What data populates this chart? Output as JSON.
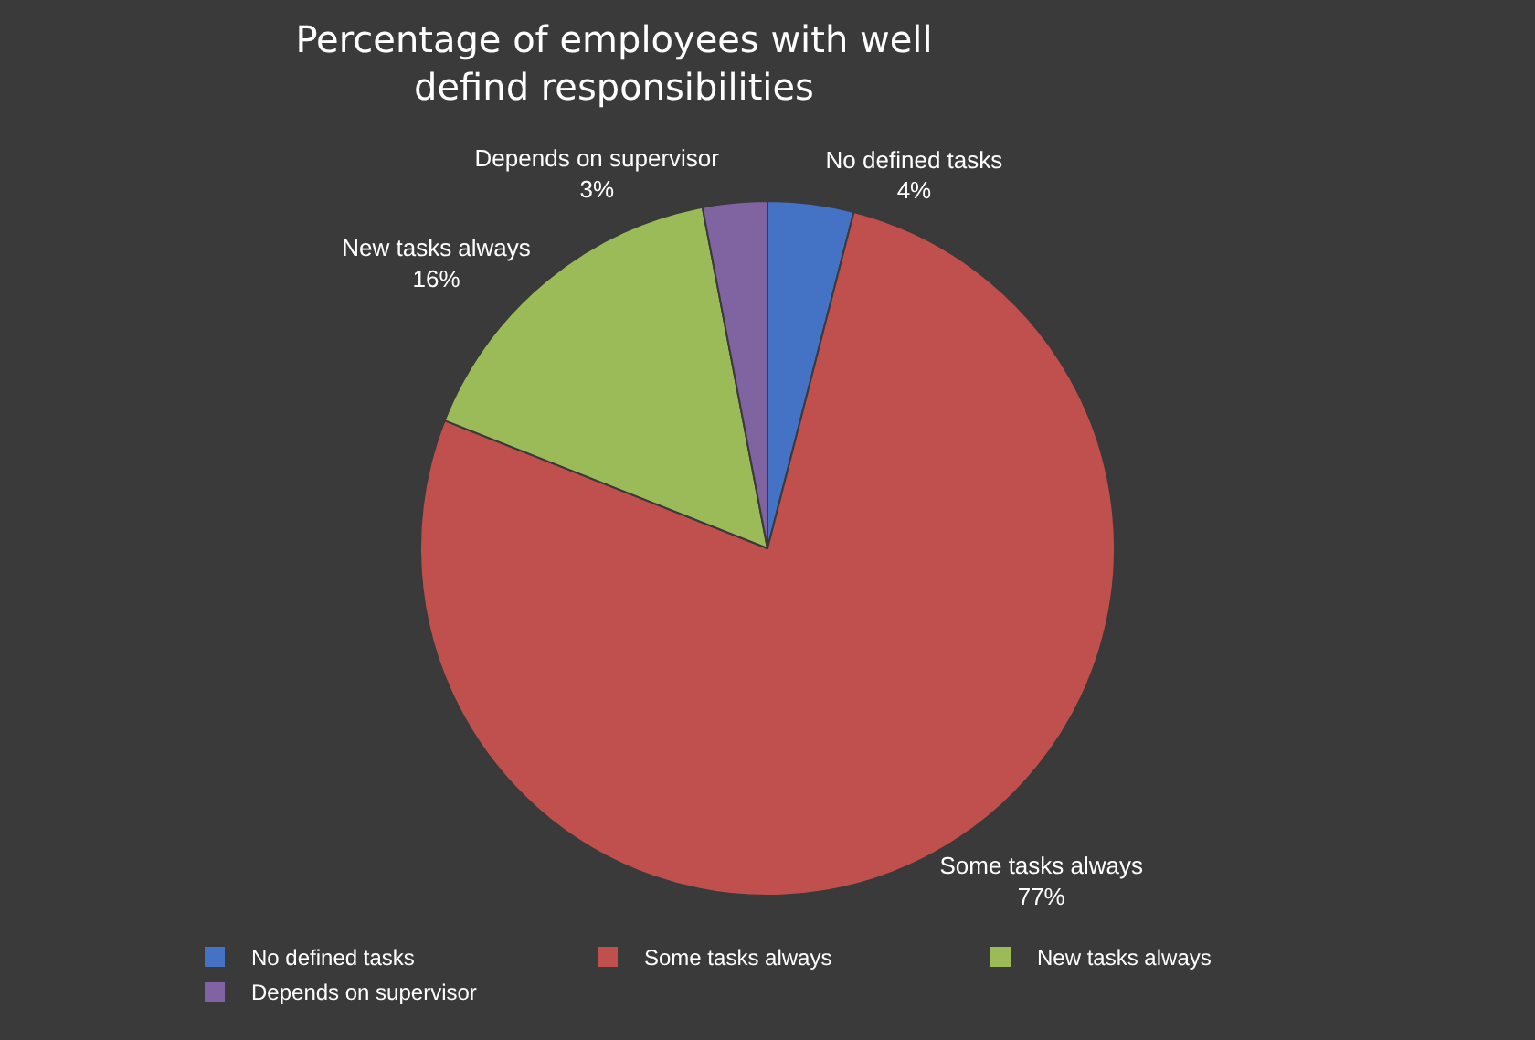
{
  "chart_data": {
    "type": "pie",
    "title": "Percentage of employees with well defind responsibilities",
    "categories": [
      "No defined tasks",
      "Some tasks always",
      "New tasks always",
      "Depends on supervisor"
    ],
    "values": [
      4,
      77,
      16,
      3
    ],
    "value_labels": [
      "4%",
      "77%",
      "16%",
      "3%"
    ],
    "colors": [
      "#4472c4",
      "#c0504d",
      "#9bbb59",
      "#8064a2"
    ],
    "legend": "bottom"
  }
}
